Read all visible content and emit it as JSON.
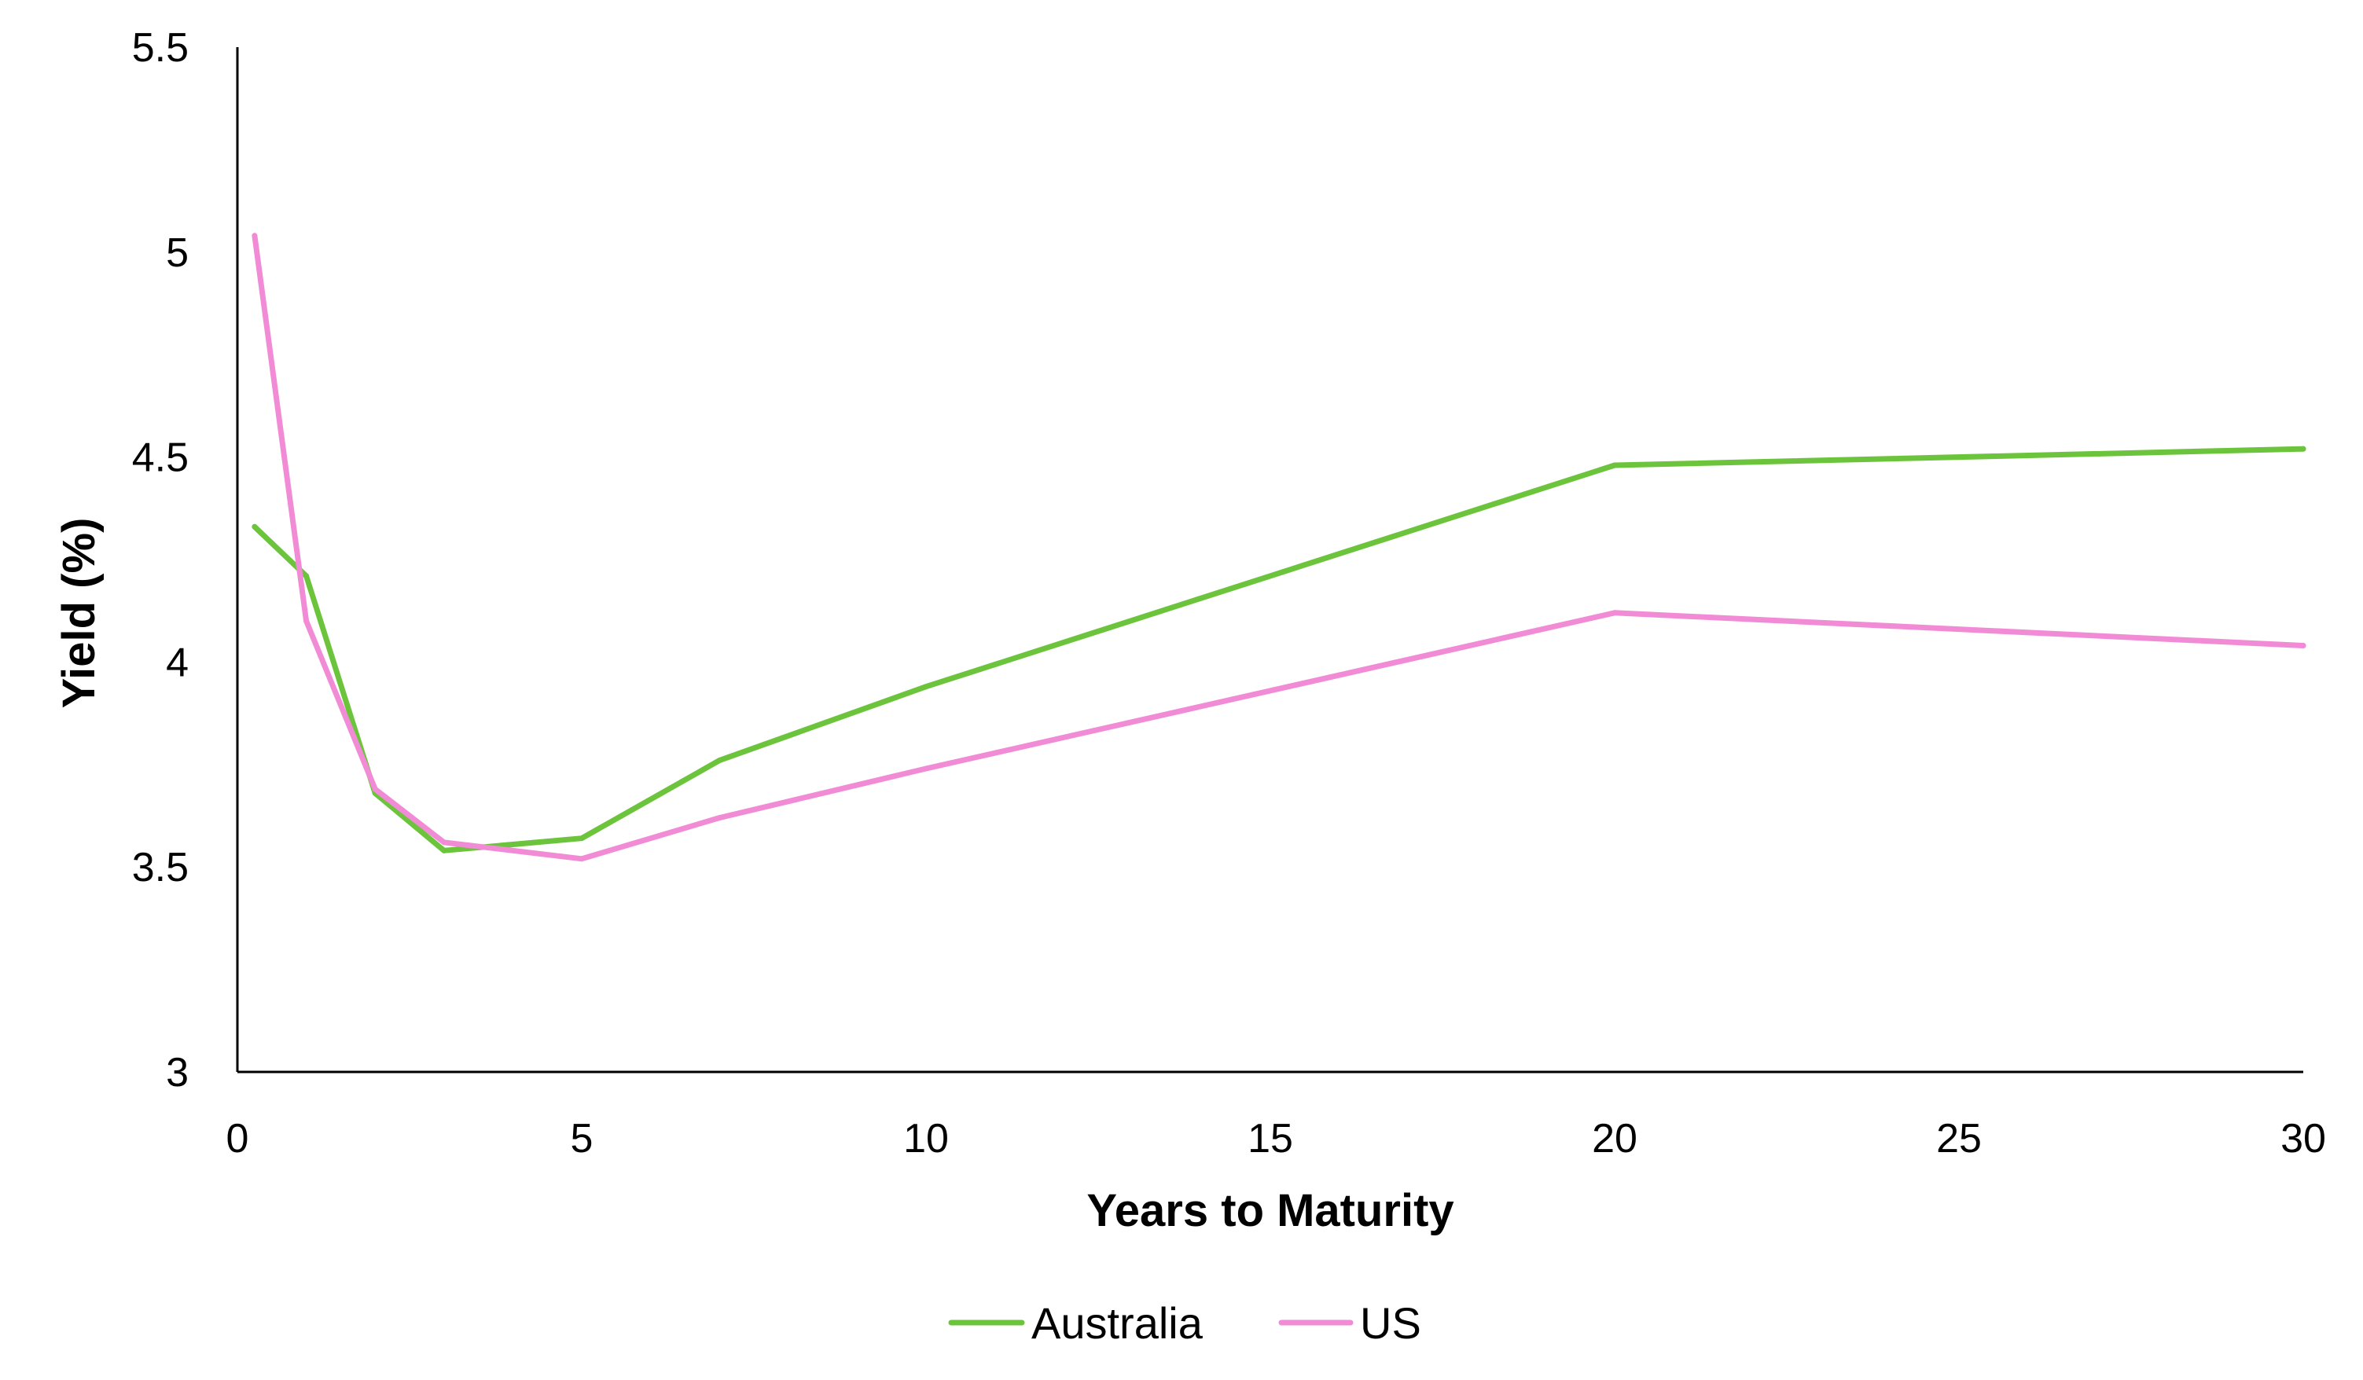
{
  "chart_data": {
    "type": "line",
    "title": "",
    "xlabel": "Years to Maturity",
    "ylabel": "Yield (%)",
    "xlim": [
      0,
      30
    ],
    "ylim": [
      3,
      5.5
    ],
    "x_ticks": [
      0,
      5,
      10,
      15,
      20,
      25,
      30
    ],
    "x_tick_labels": [
      "0",
      "5",
      "10",
      "15",
      "20",
      "25",
      "30"
    ],
    "y_ticks": [
      3,
      3.5,
      4,
      4.5,
      5,
      5.5
    ],
    "y_tick_labels": [
      "3",
      "3.5",
      "4",
      "4.5",
      "5",
      "5.5"
    ],
    "grid": false,
    "legend_position": "bottom-center",
    "series": [
      {
        "name": "Australia",
        "color": "#6cc43c",
        "x": [
          0.25,
          1,
          2,
          3,
          5,
          7,
          10,
          20,
          30
        ],
        "y": [
          4.33,
          4.21,
          3.68,
          3.54,
          3.57,
          3.76,
          3.94,
          4.48,
          4.52
        ]
      },
      {
        "name": "US",
        "color": "#f28bd6",
        "x": [
          0.25,
          1,
          2,
          3,
          5,
          7,
          10,
          20,
          30
        ],
        "y": [
          5.04,
          4.1,
          3.69,
          3.56,
          3.52,
          3.62,
          3.74,
          4.12,
          4.04
        ]
      }
    ]
  }
}
